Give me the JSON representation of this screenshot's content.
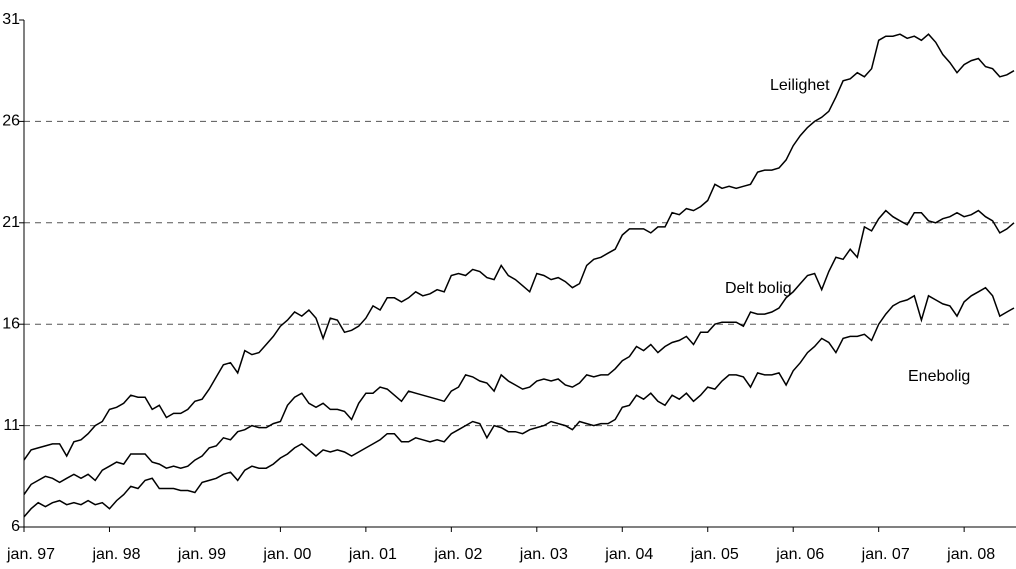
{
  "chart_data": {
    "type": "line",
    "categories": [
      "jan. 97",
      null,
      null,
      null,
      null,
      null,
      null,
      null,
      null,
      null,
      null,
      null,
      "jan. 98",
      null,
      null,
      null,
      null,
      null,
      null,
      null,
      null,
      null,
      null,
      null,
      "jan. 99",
      null,
      null,
      null,
      null,
      null,
      null,
      null,
      null,
      null,
      null,
      null,
      "jan. 00",
      null,
      null,
      null,
      null,
      null,
      null,
      null,
      null,
      null,
      null,
      null,
      "jan. 01",
      null,
      null,
      null,
      null,
      null,
      null,
      null,
      null,
      null,
      null,
      null,
      "jan. 02",
      null,
      null,
      null,
      null,
      null,
      null,
      null,
      null,
      null,
      null,
      null,
      "jan. 03",
      null,
      null,
      null,
      null,
      null,
      null,
      null,
      null,
      null,
      null,
      null,
      "jan. 04",
      null,
      null,
      null,
      null,
      null,
      null,
      null,
      null,
      null,
      null,
      null,
      "jan. 05",
      null,
      null,
      null,
      null,
      null,
      null,
      null,
      null,
      null,
      null,
      null,
      "jan. 06",
      null,
      null,
      null,
      null,
      null,
      null,
      null,
      null,
      null,
      null,
      null,
      "jan. 07",
      null,
      null,
      null,
      null,
      null,
      null,
      null,
      null,
      null,
      null,
      null,
      "jan. 08",
      null,
      null,
      null,
      null,
      null,
      null,
      null
    ],
    "series": [
      {
        "name": "Leilighet",
        "color": "#000000",
        "values": [
          9.3,
          9.8,
          9.9,
          10.0,
          10.1,
          10.1,
          9.5,
          10.2,
          10.3,
          10.6,
          11.0,
          11.2,
          11.8,
          11.9,
          12.1,
          12.5,
          12.4,
          12.4,
          11.8,
          12.0,
          11.4,
          11.6,
          11.6,
          11.8,
          12.2,
          12.3,
          12.8,
          13.4,
          14.0,
          14.1,
          13.6,
          14.7,
          14.5,
          14.6,
          15.0,
          15.4,
          15.9,
          16.2,
          16.6,
          16.4,
          16.7,
          16.3,
          15.3,
          16.3,
          16.2,
          15.6,
          15.7,
          15.9,
          16.3,
          16.9,
          16.7,
          17.3,
          17.3,
          17.1,
          17.3,
          17.6,
          17.4,
          17.5,
          17.7,
          17.6,
          18.4,
          18.5,
          18.4,
          18.7,
          18.6,
          18.3,
          18.2,
          18.9,
          18.4,
          18.2,
          17.9,
          17.6,
          18.5,
          18.4,
          18.2,
          18.3,
          18.1,
          17.8,
          18.0,
          18.9,
          19.2,
          19.3,
          19.5,
          19.7,
          20.4,
          20.7,
          20.7,
          20.7,
          20.5,
          20.8,
          20.8,
          21.5,
          21.4,
          21.7,
          21.6,
          21.8,
          22.1,
          22.9,
          22.7,
          22.8,
          22.7,
          22.8,
          22.9,
          23.5,
          23.6,
          23.6,
          23.7,
          24.1,
          24.8,
          25.3,
          25.7,
          26.0,
          26.2,
          26.5,
          27.2,
          28.0,
          28.1,
          28.4,
          28.2,
          28.6,
          30.0,
          30.2,
          30.2,
          30.3,
          30.1,
          30.2,
          30.0,
          30.3,
          29.9,
          29.3,
          28.9,
          28.4,
          28.8,
          29.0,
          29.1,
          28.7,
          28.6,
          28.2,
          28.3,
          28.5
        ]
      },
      {
        "name": "Delt bolig",
        "color": "#000000",
        "values": [
          7.6,
          8.1,
          8.3,
          8.5,
          8.4,
          8.2,
          8.4,
          8.6,
          8.4,
          8.6,
          8.3,
          8.8,
          9.0,
          9.2,
          9.1,
          9.6,
          9.6,
          9.6,
          9.2,
          9.1,
          8.9,
          9.0,
          8.9,
          9.0,
          9.3,
          9.5,
          9.9,
          10.0,
          10.4,
          10.3,
          10.7,
          10.8,
          11.0,
          10.9,
          10.9,
          11.1,
          11.2,
          12.0,
          12.4,
          12.6,
          12.1,
          11.9,
          12.1,
          11.8,
          11.8,
          11.7,
          11.3,
          12.1,
          12.6,
          12.6,
          12.9,
          12.8,
          12.5,
          12.2,
          12.7,
          12.6,
          12.5,
          12.4,
          12.3,
          12.2,
          12.7,
          12.9,
          13.5,
          13.4,
          13.2,
          13.1,
          12.7,
          13.5,
          13.2,
          13.0,
          12.8,
          12.9,
          13.2,
          13.3,
          13.2,
          13.3,
          13.0,
          12.9,
          13.1,
          13.5,
          13.4,
          13.5,
          13.5,
          13.8,
          14.2,
          14.4,
          14.9,
          14.7,
          15.0,
          14.6,
          14.9,
          15.1,
          15.2,
          15.4,
          15.0,
          15.6,
          15.6,
          16.0,
          16.1,
          16.1,
          16.1,
          15.9,
          16.6,
          16.5,
          16.5,
          16.6,
          16.8,
          17.3,
          17.6,
          18.0,
          18.4,
          18.5,
          17.7,
          18.6,
          19.3,
          19.2,
          19.7,
          19.3,
          20.8,
          20.6,
          21.2,
          21.6,
          21.3,
          21.1,
          20.9,
          21.5,
          21.5,
          21.1,
          21.0,
          21.2,
          21.3,
          21.5,
          21.3,
          21.4,
          21.6,
          21.3,
          21.1,
          20.5,
          20.7,
          21.0
        ]
      },
      {
        "name": "Enebolig",
        "color": "#000000",
        "values": [
          6.5,
          6.9,
          7.2,
          7.0,
          7.2,
          7.3,
          7.1,
          7.2,
          7.1,
          7.3,
          7.1,
          7.2,
          6.9,
          7.3,
          7.6,
          8.0,
          7.9,
          8.3,
          8.4,
          7.9,
          7.9,
          7.9,
          7.8,
          7.8,
          7.7,
          8.2,
          8.3,
          8.4,
          8.6,
          8.7,
          8.3,
          8.8,
          9.0,
          8.9,
          8.9,
          9.1,
          9.4,
          9.6,
          9.9,
          10.1,
          9.8,
          9.5,
          9.8,
          9.7,
          9.8,
          9.7,
          9.5,
          9.7,
          9.9,
          10.1,
          10.3,
          10.6,
          10.6,
          10.2,
          10.2,
          10.4,
          10.3,
          10.2,
          10.3,
          10.2,
          10.6,
          10.8,
          11.0,
          11.2,
          11.1,
          10.4,
          11.0,
          10.9,
          10.7,
          10.7,
          10.6,
          10.8,
          10.9,
          11.0,
          11.2,
          11.1,
          11.0,
          10.8,
          11.2,
          11.1,
          11.0,
          11.1,
          11.1,
          11.3,
          11.9,
          12.0,
          12.5,
          12.3,
          12.6,
          12.2,
          12.0,
          12.5,
          12.3,
          12.6,
          12.2,
          12.5,
          12.9,
          12.8,
          13.2,
          13.5,
          13.5,
          13.4,
          12.9,
          13.6,
          13.5,
          13.5,
          13.6,
          13.0,
          13.7,
          14.1,
          14.6,
          14.9,
          15.3,
          15.1,
          14.6,
          15.3,
          15.4,
          15.4,
          15.5,
          15.2,
          16.0,
          16.5,
          16.9,
          17.1,
          17.2,
          17.4,
          16.2,
          17.4,
          17.2,
          17.0,
          16.9,
          16.4,
          17.1,
          17.4,
          17.6,
          17.8,
          17.4,
          16.4,
          16.6,
          16.8
        ]
      }
    ],
    "ylim": [
      6,
      31
    ],
    "yticks": [
      6,
      11,
      16,
      21,
      26,
      31
    ],
    "grid": true
  }
}
